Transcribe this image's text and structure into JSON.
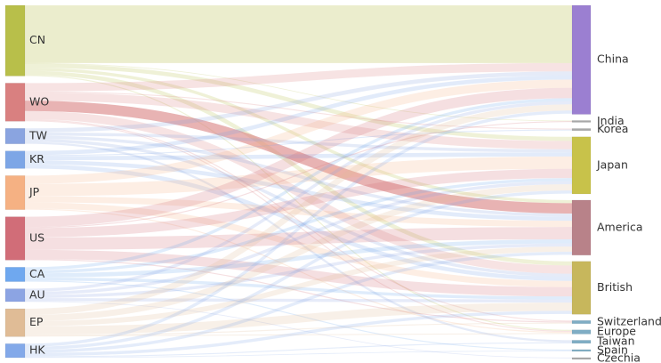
{
  "sources": [
    {
      "id": "CN",
      "label": "CN",
      "color": "#b8bf4a"
    },
    {
      "id": "WO",
      "label": "WO",
      "color": "#d98080"
    },
    {
      "id": "TW",
      "label": "TW",
      "color": "#8aa4e0"
    },
    {
      "id": "KR",
      "label": "KR",
      "color": "#7da6e6"
    },
    {
      "id": "JP",
      "label": "JP",
      "color": "#f5b183"
    },
    {
      "id": "US",
      "label": "US",
      "color": "#d16d78"
    },
    {
      "id": "CA",
      "label": "CA",
      "color": "#6fa8ef"
    },
    {
      "id": "AU",
      "label": "AU",
      "color": "#8ca4e3"
    },
    {
      "id": "EP",
      "label": "EP",
      "color": "#e0bc96"
    },
    {
      "id": "HK",
      "label": "HK",
      "color": "#83a9e9"
    }
  ],
  "targets": [
    {
      "id": "China",
      "label": "China",
      "color": "#9b7fd1"
    },
    {
      "id": "India",
      "label": "India",
      "color": "#a8a8a8"
    },
    {
      "id": "Korea",
      "label": "Korea",
      "color": "#a8a8a8"
    },
    {
      "id": "Japan",
      "label": "Japan",
      "color": "#c8c24a"
    },
    {
      "id": "America",
      "label": "America",
      "color": "#b88289"
    },
    {
      "id": "British",
      "label": "British",
      "color": "#c7b75c"
    },
    {
      "id": "Switzerland",
      "label": "Switzerland",
      "color": "#7fadc4"
    },
    {
      "id": "Europe",
      "label": "Europe",
      "color": "#7fadc4"
    },
    {
      "id": "Taiwan",
      "label": "Taiwan",
      "color": "#7fadc4"
    },
    {
      "id": "Spain",
      "label": "Spain",
      "color": "#7fadc4"
    },
    {
      "id": "Czechia",
      "label": "Czechia",
      "color": "#a8a8a8"
    }
  ],
  "links": [
    {
      "source": "CN",
      "target": "China",
      "value": 56
    },
    {
      "source": "CN",
      "target": "Japan",
      "value": 4
    },
    {
      "source": "CN",
      "target": "America",
      "value": 3
    },
    {
      "source": "CN",
      "target": "British",
      "value": 4
    },
    {
      "source": "CN",
      "target": "Europe",
      "value": 1
    },
    {
      "source": "CN",
      "target": "India",
      "value": 0.5
    },
    {
      "source": "WO",
      "target": "China",
      "value": 8
    },
    {
      "source": "WO",
      "target": "Korea",
      "value": 1
    },
    {
      "source": "WO",
      "target": "Japan",
      "value": 8
    },
    {
      "source": "WO",
      "target": "America",
      "value": 10
    },
    {
      "source": "WO",
      "target": "British",
      "value": 8
    },
    {
      "source": "WO",
      "target": "Switzerland",
      "value": 1
    },
    {
      "source": "WO",
      "target": "Europe",
      "value": 1
    },
    {
      "source": "TW",
      "target": "China",
      "value": 4
    },
    {
      "source": "TW",
      "target": "Japan",
      "value": 3
    },
    {
      "source": "TW",
      "target": "America",
      "value": 3
    },
    {
      "source": "TW",
      "target": "British",
      "value": 3
    },
    {
      "source": "TW",
      "target": "Taiwan",
      "value": 2
    },
    {
      "source": "KR",
      "target": "China",
      "value": 4
    },
    {
      "source": "KR",
      "target": "Japan",
      "value": 4
    },
    {
      "source": "KR",
      "target": "America",
      "value": 4
    },
    {
      "source": "KR",
      "target": "British",
      "value": 4
    },
    {
      "source": "KR",
      "target": "Korea",
      "value": 1
    },
    {
      "source": "JP",
      "target": "China",
      "value": 8
    },
    {
      "source": "JP",
      "target": "Japan",
      "value": 12
    },
    {
      "source": "JP",
      "target": "America",
      "value": 6
    },
    {
      "source": "JP",
      "target": "British",
      "value": 6
    },
    {
      "source": "JP",
      "target": "Europe",
      "value": 1
    },
    {
      "source": "US",
      "target": "China",
      "value": 10
    },
    {
      "source": "US",
      "target": "India",
      "value": 1
    },
    {
      "source": "US",
      "target": "Japan",
      "value": 9
    },
    {
      "source": "US",
      "target": "America",
      "value": 12
    },
    {
      "source": "US",
      "target": "British",
      "value": 9
    },
    {
      "source": "US",
      "target": "Switzerland",
      "value": 1
    },
    {
      "source": "CA",
      "target": "China",
      "value": 3
    },
    {
      "source": "CA",
      "target": "Japan",
      "value": 3
    },
    {
      "source": "CA",
      "target": "America",
      "value": 4
    },
    {
      "source": "CA",
      "target": "British",
      "value": 3
    },
    {
      "source": "CA",
      "target": "Spain",
      "value": 1
    },
    {
      "source": "AU",
      "target": "China",
      "value": 3
    },
    {
      "source": "AU",
      "target": "Japan",
      "value": 3
    },
    {
      "source": "AU",
      "target": "America",
      "value": 3
    },
    {
      "source": "AU",
      "target": "British",
      "value": 3
    },
    {
      "source": "AU",
      "target": "Czechia",
      "value": 0.5
    },
    {
      "source": "EP",
      "target": "China",
      "value": 6
    },
    {
      "source": "EP",
      "target": "Japan",
      "value": 6
    },
    {
      "source": "EP",
      "target": "America",
      "value": 5
    },
    {
      "source": "EP",
      "target": "British",
      "value": 8
    },
    {
      "source": "EP",
      "target": "Switzerland",
      "value": 1
    },
    {
      "source": "EP",
      "target": "Europe",
      "value": 1
    },
    {
      "source": "HK",
      "target": "China",
      "value": 3
    },
    {
      "source": "HK",
      "target": "Japan",
      "value": 3
    },
    {
      "source": "HK",
      "target": "America",
      "value": 3
    },
    {
      "source": "HK",
      "target": "British",
      "value": 3
    },
    {
      "source": "HK",
      "target": "Taiwan",
      "value": 1
    },
    {
      "source": "HK",
      "target": "Spain",
      "value": 0.5
    }
  ]
}
